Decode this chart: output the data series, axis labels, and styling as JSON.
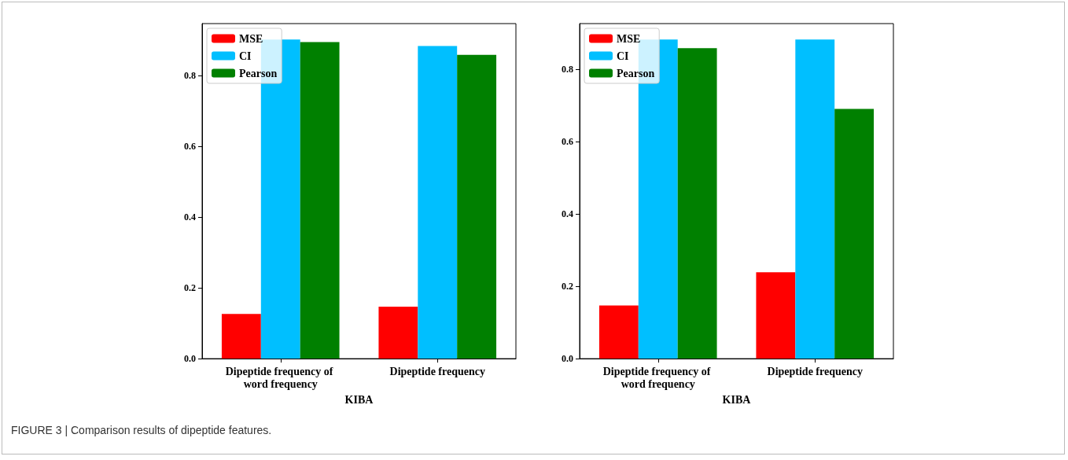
{
  "chart_data": [
    {
      "type": "bar",
      "xlabel": "KIBA",
      "categories": [
        "Dipeptide frequency of word frequency",
        "Dipeptide frequency"
      ],
      "series": [
        {
          "name": "MSE",
          "color": "#ff0000",
          "values": [
            0.126,
            0.147
          ]
        },
        {
          "name": "CI",
          "color": "#00bfff",
          "values": [
            0.901,
            0.883
          ]
        },
        {
          "name": "Pearson",
          "color": "#008000",
          "values": [
            0.894,
            0.858
          ]
        }
      ],
      "ylim": [
        0,
        0.946
      ],
      "yticks": [
        {
          "value": 0,
          "label": "0.0"
        },
        0.2,
        0.4,
        0.6,
        0.8
      ],
      "legend": "top left",
      "annotations": [
        "FIGURE 3 | Comparison results of dipeptide features."
      ]
    },
    {
      "type": "bar",
      "xlabel": "KIBA",
      "categories": [
        "Dipeptide frequency of word frequency",
        "Dipeptide frequency"
      ],
      "series": [
        {
          "name": "MSE",
          "color": "#ff0000",
          "values": [
            0.147,
            0.239
          ]
        },
        {
          "name": "CI",
          "color": "#00bfff",
          "values": [
            0.883,
            0.883
          ]
        },
        {
          "name": "Pearson",
          "color": "#008000",
          "values": [
            0.859,
            0.691
          ]
        }
      ],
      "ylim": [
        0,
        0.927
      ],
      "yticks": [
        {
          "value": 0,
          "label": "0.0"
        },
        0.2,
        0.4,
        0.6,
        0.8
      ],
      "legend": "top left"
    }
  ]
}
